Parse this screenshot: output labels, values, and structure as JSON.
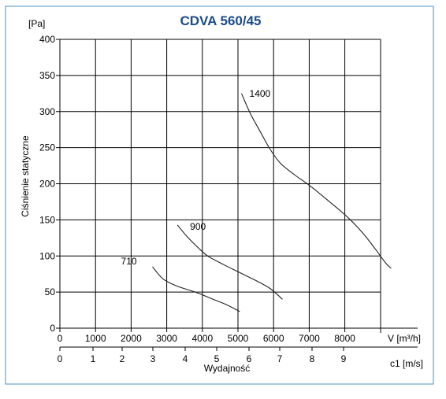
{
  "chart_data": {
    "type": "line",
    "title": "CDVA 560/45",
    "ylabel": "Ciśnienie statyczne",
    "y_unit": "[Pa]",
    "xlabel": "Wydajność",
    "x_unit": "V [m³/h]",
    "x2_unit": "c1 [m/s]",
    "xlim": [
      0,
      9000
    ],
    "ylim": [
      0,
      400
    ],
    "grid": true,
    "y_ticks": [
      "0",
      "50",
      "100",
      "150",
      "200",
      "250",
      "300",
      "350",
      "400"
    ],
    "x_ticks": [
      "0",
      "1000",
      "2000",
      "3000",
      "4000",
      "5000",
      "6000",
      "7000",
      "8000"
    ],
    "x2_ticks": [
      {
        "value": 0,
        "label": "0"
      },
      {
        "value": 1,
        "label": "1"
      },
      {
        "value": 2,
        "label": "2"
      },
      {
        "value": 3,
        "label": "3"
      },
      {
        "value": 4,
        "label": "4"
      },
      {
        "value": 5,
        "label": "5"
      },
      {
        "value": 6,
        "label": "6"
      },
      {
        "value": 7,
        "label": "7"
      },
      {
        "value": 8,
        "label": "8"
      },
      {
        "value": 9,
        "label": "9"
      }
    ],
    "series": [
      {
        "name": "710",
        "points": [
          [
            2600,
            85
          ],
          [
            2900,
            68
          ],
          [
            3300,
            58
          ],
          [
            3800,
            50
          ],
          [
            4300,
            40
          ],
          [
            4700,
            32
          ],
          [
            5050,
            23
          ]
        ]
      },
      {
        "name": "900",
        "points": [
          [
            3300,
            143
          ],
          [
            3550,
            128
          ],
          [
            3850,
            113
          ],
          [
            4150,
            100
          ],
          [
            4600,
            88
          ],
          [
            5050,
            77
          ],
          [
            5500,
            66
          ],
          [
            5900,
            55
          ],
          [
            6250,
            40
          ]
        ]
      },
      {
        "name": "1400",
        "points": [
          [
            5100,
            325
          ],
          [
            5350,
            297
          ],
          [
            5650,
            270
          ],
          [
            5900,
            248
          ],
          [
            6200,
            228
          ],
          [
            6600,
            212
          ],
          [
            7000,
            198
          ],
          [
            7500,
            178
          ],
          [
            8050,
            155
          ],
          [
            8500,
            132
          ],
          [
            8850,
            110
          ],
          [
            9150,
            90
          ],
          [
            9300,
            83
          ]
        ]
      }
    ],
    "colors": {
      "title": "#1b4b8c",
      "line": "#222222",
      "grid": "#000000",
      "frame": "#4a90c0"
    }
  }
}
